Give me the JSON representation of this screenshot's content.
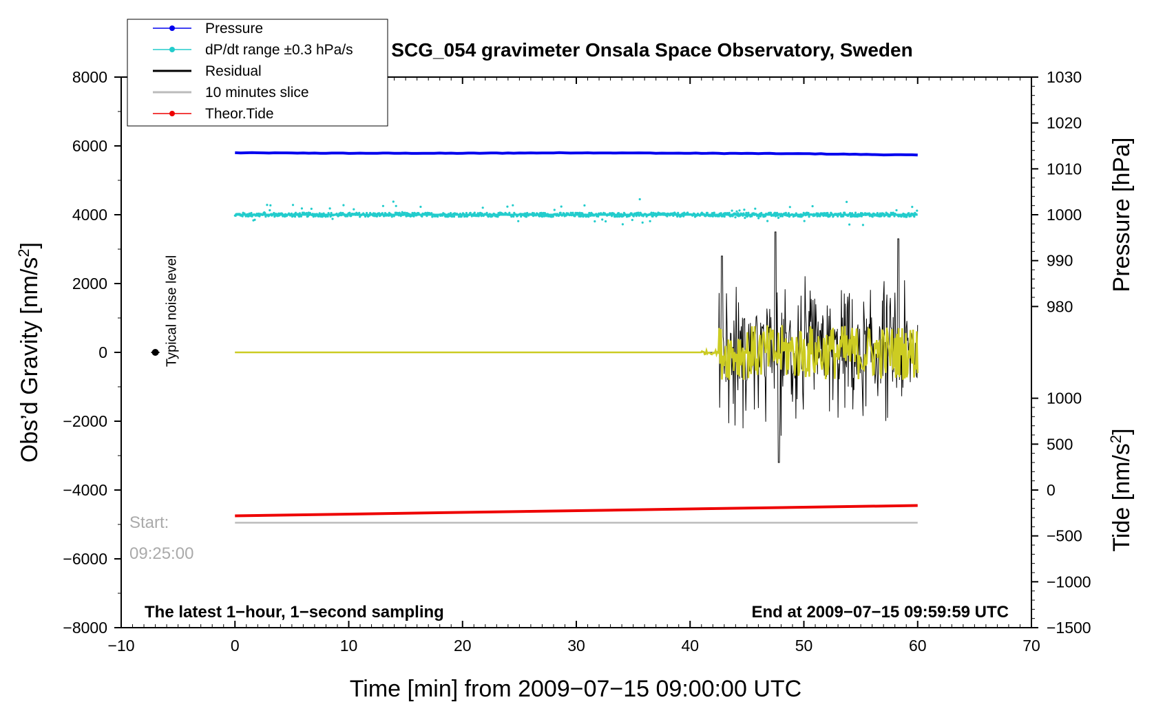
{
  "chart_data": {
    "type": "line",
    "title": "SCG_054 gravimeter Onsala Space Observatory, Sweden",
    "xlabel": "Time [min] from 2009−07−15 09:00:00 UTC",
    "ylabel_left": "Obs'd Gravity [nm/s²]",
    "ylabel_left_main": "Obs’d Gravity [nm/s",
    "ylabel_right_top": "Pressure [hPa]",
    "ylabel_right_bottom_main": "Tide [nm/s",
    "superscript_two": "2",
    "closing_bracket": "]",
    "xlim": [
      -10,
      70
    ],
    "ylim_left": [
      -8000,
      8000
    ],
    "ylim_pressure": [
      980,
      1030
    ],
    "ylim_tide": [
      -1500,
      1000
    ],
    "x_ticks": [
      "−10",
      "0",
      "10",
      "20",
      "30",
      "40",
      "50",
      "60",
      "70"
    ],
    "x_tick_values": [
      -10,
      0,
      10,
      20,
      30,
      40,
      50,
      60,
      70
    ],
    "y_left_ticks": [
      "8000",
      "6000",
      "4000",
      "2000",
      "0",
      "−2000",
      "−4000",
      "−6000",
      "−8000"
    ],
    "y_left_tick_values": [
      8000,
      6000,
      4000,
      2000,
      0,
      -2000,
      -4000,
      -6000,
      -8000
    ],
    "pressure_ticks": [
      "1030",
      "1020",
      "1010",
      "1000",
      "990",
      "980"
    ],
    "pressure_tick_values": [
      1030,
      1020,
      1010,
      1000,
      990,
      980
    ],
    "tide_ticks": [
      "1000",
      "500",
      "0",
      "−500",
      "−1000",
      "−1500"
    ],
    "tide_tick_values": [
      1000,
      500,
      0,
      -500,
      -1000,
      -1500
    ],
    "legend": [
      {
        "label": "Pressure",
        "color": "#0000ee",
        "marker": true
      },
      {
        "label": "dP/dt range ±0.3 hPa/s",
        "color": "#22cccc",
        "marker": true
      },
      {
        "label": "Residual",
        "color": "#000000",
        "marker": false
      },
      {
        "label": "10 minutes slice",
        "color": "#bbbbbb",
        "marker": false
      },
      {
        "label": "Theor.Tide",
        "color": "#ee0000",
        "marker": true
      }
    ],
    "series": [
      {
        "name": "Pressure",
        "axis": "pressure",
        "color": "#0000ee",
        "x": [
          0,
          10,
          20,
          30,
          40,
          50,
          60
        ],
        "y": [
          1013.5,
          1013.4,
          1013.4,
          1013.5,
          1013.4,
          1013.3,
          1013.0
        ]
      },
      {
        "name": "dP/dt range ±0.3 hPa/s",
        "axis": "left",
        "color": "#22cccc",
        "x": [
          0,
          60
        ],
        "y": [
          4000,
          4000
        ],
        "scatter_spread": 300
      },
      {
        "name": "Residual",
        "axis": "left",
        "color": "#000000",
        "x": [
          0,
          42,
          42.8,
          47.5,
          48,
          58.5,
          60
        ],
        "y": [
          0,
          0,
          2800,
          3500,
          -3200,
          3300,
          1800
        ],
        "quiet_until": 42.5,
        "noise_amplitude": 2500
      },
      {
        "name": "Residual (filtered)",
        "axis": "left",
        "color": "#cccc22",
        "x": [
          0,
          41,
          60
        ],
        "y": [
          0,
          0,
          0
        ],
        "quiet_until": 42.5,
        "noise_amplitude": 800
      },
      {
        "name": "Theor.Tide",
        "axis": "left",
        "color": "#ee0000",
        "x": [
          0,
          60
        ],
        "y": [
          -4750,
          -4450
        ]
      },
      {
        "name": "10 minutes slice",
        "axis": "left",
        "color": "#bbbbbb",
        "x": [
          0,
          60
        ],
        "y": [
          -4950,
          -4950
        ]
      }
    ],
    "noise_marker": {
      "x": -7,
      "y": 0,
      "label": "Typical noise level"
    },
    "start_label": "Start:",
    "start_time": "09:25:00",
    "annotation_left": "The latest 1−hour, 1−second sampling",
    "annotation_right": "End at 2009−07−15 09:59:59 UTC"
  }
}
